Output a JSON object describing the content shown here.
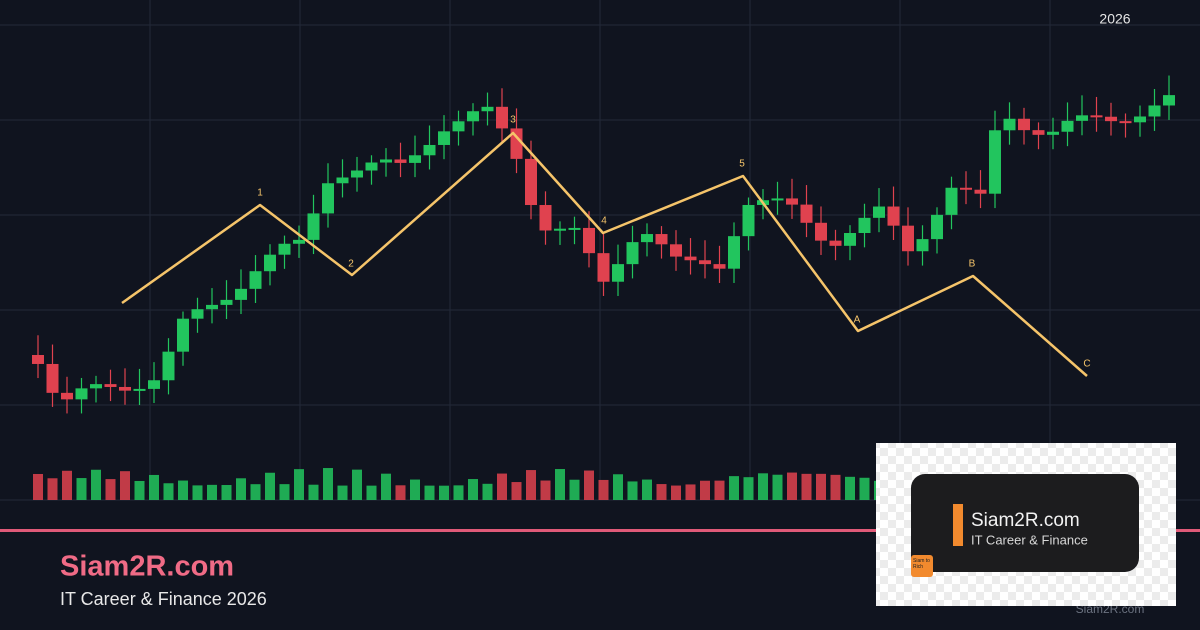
{
  "header": {
    "year": "2026"
  },
  "waves": {
    "labels": [
      "1",
      "2",
      "3",
      "4",
      "5",
      "A",
      "B",
      "C"
    ]
  },
  "brand": {
    "title": "Siam2R.com",
    "subtitle": "IT Career & Finance 2026"
  },
  "logo": {
    "title": "Siam2R.com",
    "subtitle": "IT Career & Finance",
    "badge": "Siam to Rich"
  },
  "watermark": "Siam2R.com"
}
